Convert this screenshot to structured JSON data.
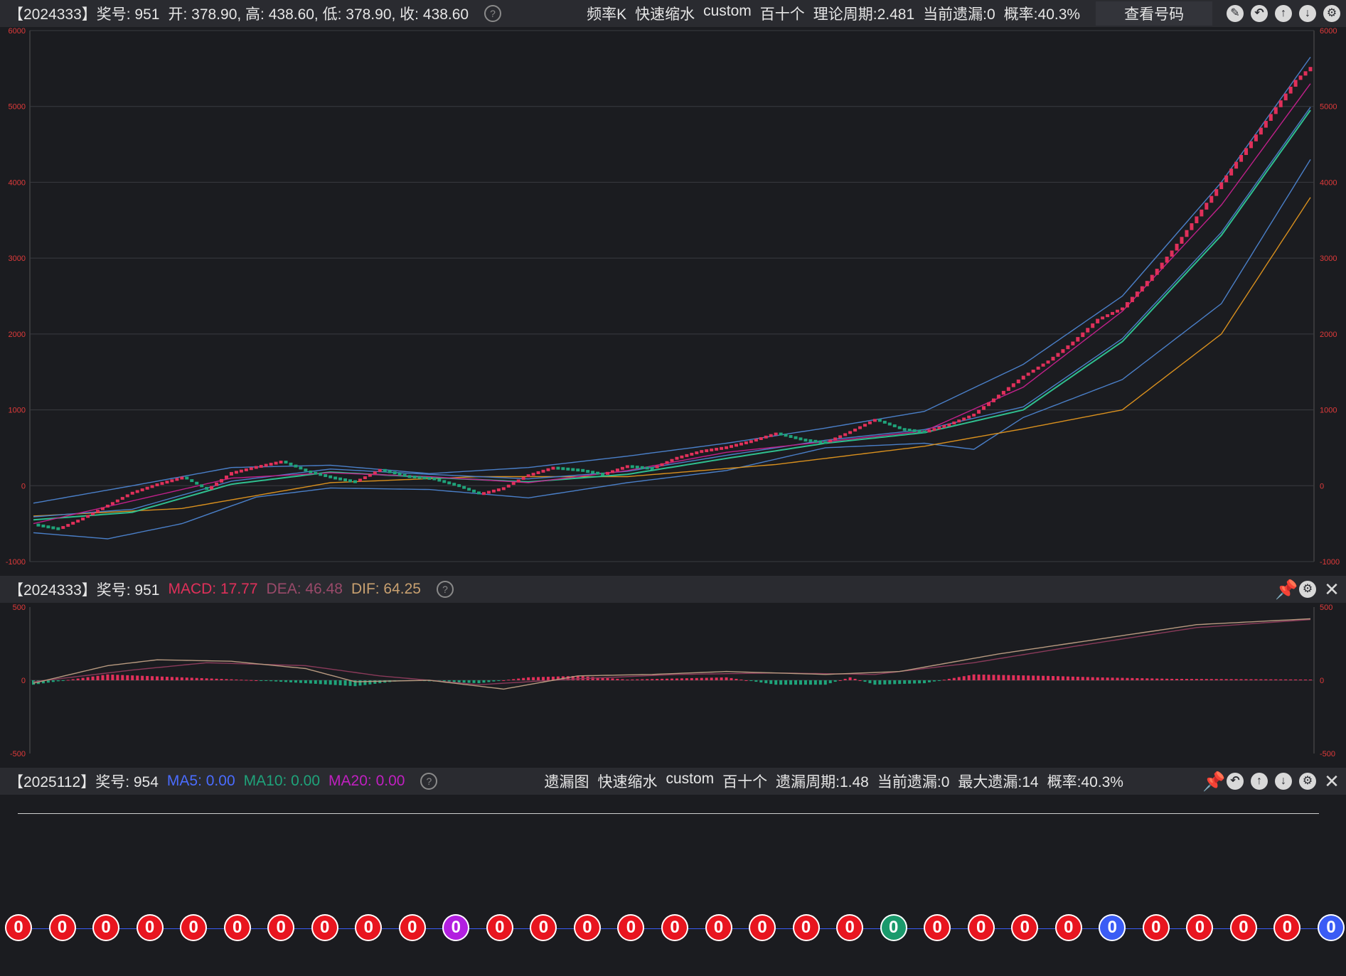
{
  "header1": {
    "period": "【2024333】奖号: 951",
    "ohlc": "开: 378.90, 高: 438.60, 低: 378.90, 收: 438.60",
    "tabs": [
      "频率K",
      "快速缩水",
      "custom",
      "百十个",
      "理论周期:2.481",
      "当前遗漏:0",
      "概率:40.3%"
    ],
    "view_button": "查看号码",
    "tool_icons": [
      "edit-icon",
      "undo-icon",
      "up-icon",
      "down-icon",
      "settings-icon"
    ]
  },
  "header2": {
    "period": "【2024333】奖号: 951",
    "macd": "MACD: 17.77",
    "dea": "DEA: 46.48",
    "dif": "DIF: 64.25",
    "tool_icons": [
      "pin-icon",
      "settings-icon",
      "close-icon"
    ]
  },
  "header3": {
    "period": "【2025112】奖号: 954",
    "ma5": "MA5: 0.00",
    "ma10": "MA10: 0.00",
    "ma20": "MA20: 0.00",
    "tabs": [
      "遗漏图",
      "快速缩水",
      "custom",
      "百十个",
      "遗漏周期:1.48",
      "当前遗漏:0",
      "最大遗漏:14",
      "概率:40.3%"
    ],
    "tool_icons": [
      "pin-icon",
      "undo-icon",
      "up-icon",
      "down-icon",
      "settings-icon",
      "close-icon"
    ]
  },
  "colors": {
    "up": "#e0305a",
    "down": "#1fa37a",
    "ma_magenta": "#c0208a",
    "ma_green": "#2fbf8f",
    "boll": "#4a7fc8",
    "ma_orange": "#d9901e",
    "macd_label": "#e0305a",
    "dea_label": "#9a4a6a",
    "dif_label": "#c8a070",
    "ma5_label": "#4a6cff",
    "ma10_label": "#1fa37a",
    "ma20_label": "#c020c0"
  },
  "chart_data": [
    {
      "type": "candlestick",
      "title": "",
      "ylim": [
        -1000,
        6000
      ],
      "yticks": [
        "6000",
        "5000",
        "4000",
        "3000",
        "2000",
        "1000",
        "0",
        "-1000"
      ],
      "grid": true,
      "close_points": [
        [
          0,
          -500
        ],
        [
          5,
          -560
        ],
        [
          10,
          -420
        ],
        [
          15,
          -250
        ],
        [
          20,
          -80
        ],
        [
          25,
          30
        ],
        [
          30,
          120
        ],
        [
          35,
          -50
        ],
        [
          40,
          180
        ],
        [
          45,
          260
        ],
        [
          50,
          330
        ],
        [
          55,
          200
        ],
        [
          60,
          120
        ],
        [
          65,
          60
        ],
        [
          70,
          220
        ],
        [
          75,
          140
        ],
        [
          80,
          110
        ],
        [
          85,
          20
        ],
        [
          90,
          -100
        ],
        [
          95,
          -20
        ],
        [
          100,
          150
        ],
        [
          105,
          250
        ],
        [
          110,
          220
        ],
        [
          115,
          160
        ],
        [
          120,
          270
        ],
        [
          125,
          240
        ],
        [
          130,
          380
        ],
        [
          135,
          470
        ],
        [
          140,
          520
        ],
        [
          145,
          600
        ],
        [
          150,
          700
        ],
        [
          155,
          620
        ],
        [
          160,
          580
        ],
        [
          165,
          720
        ],
        [
          170,
          880
        ],
        [
          175,
          760
        ],
        [
          180,
          720
        ],
        [
          185,
          820
        ],
        [
          190,
          950
        ],
        [
          195,
          1200
        ],
        [
          200,
          1450
        ],
        [
          205,
          1650
        ],
        [
          210,
          1900
        ],
        [
          215,
          2200
        ],
        [
          220,
          2350
        ],
        [
          225,
          2700
        ],
        [
          230,
          3100
        ],
        [
          235,
          3550
        ],
        [
          240,
          4000
        ],
        [
          245,
          4450
        ],
        [
          250,
          4900
        ],
        [
          255,
          5350
        ],
        [
          258,
          5520
        ]
      ],
      "series": [
        {
          "name": "",
          "points": [
            [
              0,
              -500
            ],
            [
              20,
              -200
            ],
            [
              40,
              100
            ],
            [
              60,
              170
            ],
            [
              80,
              120
            ],
            [
              100,
              40
            ],
            [
              120,
              200
            ],
            [
              140,
              440
            ],
            [
              160,
              580
            ],
            [
              180,
              720
            ],
            [
              200,
              1300
            ],
            [
              220,
              2300
            ],
            [
              240,
              3700
            ],
            [
              258,
              5300
            ]
          ]
        },
        {
          "name": "",
          "points": [
            [
              0,
              -450
            ],
            [
              20,
              -350
            ],
            [
              40,
              20
            ],
            [
              60,
              180
            ],
            [
              80,
              110
            ],
            [
              100,
              50
            ],
            [
              120,
              150
            ],
            [
              140,
              360
            ],
            [
              160,
              560
            ],
            [
              180,
              700
            ],
            [
              200,
              1000
            ],
            [
              220,
              1900
            ],
            [
              240,
              3300
            ],
            [
              258,
              4950
            ]
          ]
        },
        {
          "name": "",
          "points": [
            [
              0,
              -400
            ],
            [
              30,
              -300
            ],
            [
              60,
              40
            ],
            [
              90,
              120
            ],
            [
              120,
              120
            ],
            [
              150,
              280
            ],
            [
              180,
              520
            ],
            [
              200,
              750
            ],
            [
              220,
              1000
            ],
            [
              240,
              2000
            ],
            [
              258,
              3800
            ]
          ]
        }
      ],
      "boll_upper": [
        [
          0,
          -230
        ],
        [
          20,
          0
        ],
        [
          40,
          240
        ],
        [
          60,
          270
        ],
        [
          80,
          160
        ],
        [
          100,
          240
        ],
        [
          120,
          390
        ],
        [
          140,
          560
        ],
        [
          160,
          760
        ],
        [
          180,
          980
        ],
        [
          200,
          1600
        ],
        [
          220,
          2500
        ],
        [
          240,
          4000
        ],
        [
          258,
          5650
        ]
      ],
      "boll_lower": [
        [
          0,
          -620
        ],
        [
          15,
          -700
        ],
        [
          30,
          -500
        ],
        [
          45,
          -150
        ],
        [
          60,
          -30
        ],
        [
          80,
          -50
        ],
        [
          100,
          -160
        ],
        [
          120,
          40
        ],
        [
          140,
          200
        ],
        [
          160,
          500
        ],
        [
          180,
          560
        ],
        [
          190,
          480
        ],
        [
          200,
          900
        ],
        [
          220,
          1400
        ],
        [
          240,
          2400
        ],
        [
          258,
          4300
        ]
      ]
    },
    {
      "type": "macd",
      "ylim": [
        -500,
        500
      ],
      "yticks": [
        "500",
        "0",
        "-500"
      ],
      "dif": [
        [
          0,
          -20
        ],
        [
          15,
          100
        ],
        [
          25,
          140
        ],
        [
          40,
          130
        ],
        [
          55,
          80
        ],
        [
          65,
          -10
        ],
        [
          80,
          0
        ],
        [
          95,
          -60
        ],
        [
          110,
          30
        ],
        [
          125,
          40
        ],
        [
          140,
          60
        ],
        [
          160,
          40
        ],
        [
          175,
          60
        ],
        [
          195,
          180
        ],
        [
          215,
          280
        ],
        [
          235,
          380
        ],
        [
          258,
          420
        ]
      ],
      "dea": [
        [
          0,
          -10
        ],
        [
          20,
          70
        ],
        [
          35,
          120
        ],
        [
          55,
          100
        ],
        [
          70,
          30
        ],
        [
          90,
          -30
        ],
        [
          110,
          10
        ],
        [
          130,
          40
        ],
        [
          150,
          50
        ],
        [
          170,
          40
        ],
        [
          190,
          120
        ],
        [
          210,
          230
        ],
        [
          235,
          360
        ],
        [
          258,
          415
        ]
      ],
      "histogram": [
        [
          0,
          -30
        ],
        [
          15,
          40
        ],
        [
          30,
          20
        ],
        [
          45,
          0
        ],
        [
          55,
          -20
        ],
        [
          65,
          -40
        ],
        [
          75,
          0
        ],
        [
          90,
          -20
        ],
        [
          100,
          20
        ],
        [
          110,
          30
        ],
        [
          120,
          5
        ],
        [
          140,
          20
        ],
        [
          150,
          -30
        ],
        [
          160,
          -30
        ],
        [
          165,
          20
        ],
        [
          170,
          -30
        ],
        [
          180,
          -20
        ],
        [
          190,
          40
        ],
        [
          205,
          30
        ],
        [
          215,
          20
        ],
        [
          230,
          10
        ],
        [
          258,
          5
        ]
      ]
    }
  ],
  "balls": {
    "count": 31,
    "values": [
      "0",
      "0",
      "0",
      "0",
      "0",
      "0",
      "0",
      "0",
      "0",
      "0",
      "0",
      "0",
      "0",
      "0",
      "0",
      "0",
      "0",
      "0",
      "0",
      "0",
      "0",
      "0",
      "0",
      "0",
      "0",
      "0",
      "0",
      "0",
      "0",
      "0",
      "0"
    ],
    "colors": [
      "#e8151f",
      "#e8151f",
      "#e8151f",
      "#e8151f",
      "#e8151f",
      "#e8151f",
      "#e8151f",
      "#e8151f",
      "#e8151f",
      "#e8151f",
      "#b21fe0",
      "#e8151f",
      "#e8151f",
      "#e8151f",
      "#e8151f",
      "#e8151f",
      "#e8151f",
      "#e8151f",
      "#e8151f",
      "#e8151f",
      "#1a9a6c",
      "#e8151f",
      "#e8151f",
      "#e8151f",
      "#e8151f",
      "#3a5cf5",
      "#e8151f",
      "#e8151f",
      "#e8151f",
      "#e8151f",
      "#3a5cf5"
    ]
  }
}
